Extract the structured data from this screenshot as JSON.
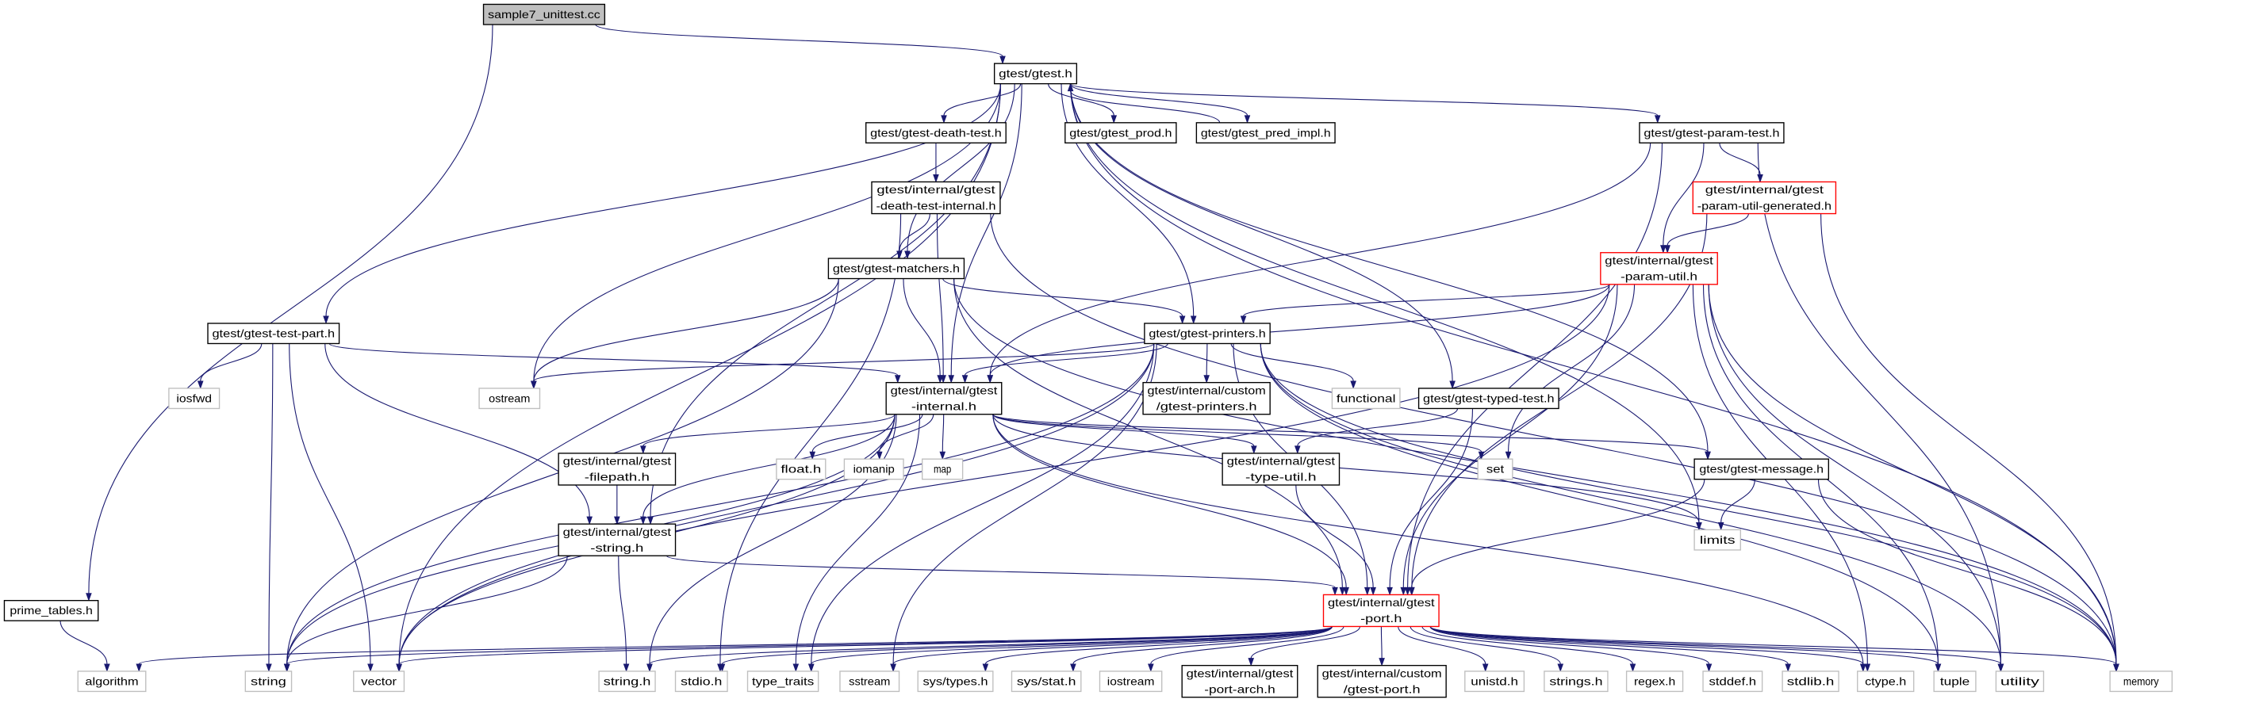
{
  "colors": {
    "edge": "#191970",
    "root_fill": "#bfbfbf",
    "documented_border": "#000000",
    "system_border": "#bfbfbf",
    "incomplete_border": "#ff0000"
  },
  "nodes": [
    {
      "id": "sample7",
      "kind": "root",
      "lines": [
        "sample7_unittest.cc"
      ]
    },
    {
      "id": "gtest",
      "kind": "documented",
      "lines": [
        "gtest/gtest.h"
      ]
    },
    {
      "id": "death",
      "kind": "documented",
      "lines": [
        "gtest/gtest-death-test.h"
      ]
    },
    {
      "id": "prod",
      "kind": "documented",
      "lines": [
        "gtest/gtest_prod.h"
      ]
    },
    {
      "id": "pred",
      "kind": "documented",
      "lines": [
        "gtest/gtest_pred_impl.h"
      ]
    },
    {
      "id": "param",
      "kind": "documented",
      "lines": [
        "gtest/gtest-param-test.h"
      ]
    },
    {
      "id": "dti",
      "kind": "documented",
      "lines": [
        "gtest/internal/gtest",
        "-death-test-internal.h"
      ]
    },
    {
      "id": "pug",
      "kind": "incomplete",
      "lines": [
        "gtest/internal/gtest",
        "-param-util-generated.h"
      ]
    },
    {
      "id": "matchers",
      "kind": "documented",
      "lines": [
        "gtest/gtest-matchers.h"
      ]
    },
    {
      "id": "pu",
      "kind": "incomplete",
      "lines": [
        "gtest/internal/gtest",
        "-param-util.h"
      ]
    },
    {
      "id": "testpart",
      "kind": "documented",
      "lines": [
        "gtest/gtest-test-part.h"
      ]
    },
    {
      "id": "printers",
      "kind": "documented",
      "lines": [
        "gtest/gtest-printers.h"
      ]
    },
    {
      "id": "iosfwd",
      "kind": "system",
      "lines": [
        "iosfwd"
      ]
    },
    {
      "id": "ostream",
      "kind": "system",
      "lines": [
        "ostream"
      ]
    },
    {
      "id": "internal",
      "kind": "documented",
      "lines": [
        "gtest/internal/gtest",
        "-internal.h"
      ]
    },
    {
      "id": "cprinters",
      "kind": "documented",
      "lines": [
        "gtest/internal/custom",
        "/gtest-printers.h"
      ]
    },
    {
      "id": "functional",
      "kind": "system",
      "lines": [
        "functional"
      ]
    },
    {
      "id": "typed",
      "kind": "documented",
      "lines": [
        "gtest/gtest-typed-test.h"
      ]
    },
    {
      "id": "filepath",
      "kind": "documented",
      "lines": [
        "gtest/internal/gtest",
        "-filepath.h"
      ]
    },
    {
      "id": "float",
      "kind": "system",
      "lines": [
        "float.h"
      ]
    },
    {
      "id": "iomanip",
      "kind": "system",
      "lines": [
        "iomanip"
      ]
    },
    {
      "id": "map",
      "kind": "system",
      "lines": [
        "map"
      ]
    },
    {
      "id": "typeutil",
      "kind": "documented",
      "lines": [
        "gtest/internal/gtest",
        "-type-util.h"
      ]
    },
    {
      "id": "set",
      "kind": "system",
      "lines": [
        "set"
      ]
    },
    {
      "id": "message",
      "kind": "documented",
      "lines": [
        "gtest/gtest-message.h"
      ]
    },
    {
      "id": "gstring",
      "kind": "documented",
      "lines": [
        "gtest/internal/gtest",
        "-string.h"
      ]
    },
    {
      "id": "limits",
      "kind": "system",
      "lines": [
        "limits"
      ]
    },
    {
      "id": "prime",
      "kind": "documented",
      "lines": [
        "prime_tables.h"
      ]
    },
    {
      "id": "port",
      "kind": "incomplete",
      "lines": [
        "gtest/internal/gtest",
        "-port.h"
      ]
    },
    {
      "id": "algorithm",
      "kind": "system",
      "lines": [
        "algorithm"
      ]
    },
    {
      "id": "string",
      "kind": "system",
      "lines": [
        "string"
      ]
    },
    {
      "id": "vector",
      "kind": "system",
      "lines": [
        "vector"
      ]
    },
    {
      "id": "stringh",
      "kind": "system",
      "lines": [
        "string.h"
      ]
    },
    {
      "id": "stdio",
      "kind": "system",
      "lines": [
        "stdio.h"
      ]
    },
    {
      "id": "typetraits",
      "kind": "system",
      "lines": [
        "type_traits"
      ]
    },
    {
      "id": "sstream",
      "kind": "system",
      "lines": [
        "sstream"
      ]
    },
    {
      "id": "systypes",
      "kind": "system",
      "lines": [
        "sys/types.h"
      ]
    },
    {
      "id": "sysstat",
      "kind": "system",
      "lines": [
        "sys/stat.h"
      ]
    },
    {
      "id": "iostream",
      "kind": "system",
      "lines": [
        "iostream"
      ]
    },
    {
      "id": "portarch",
      "kind": "documented",
      "lines": [
        "gtest/internal/gtest",
        "-port-arch.h"
      ]
    },
    {
      "id": "cport",
      "kind": "documented",
      "lines": [
        "gtest/internal/custom",
        "/gtest-port.h"
      ]
    },
    {
      "id": "unistd",
      "kind": "system",
      "lines": [
        "unistd.h"
      ]
    },
    {
      "id": "strings",
      "kind": "system",
      "lines": [
        "strings.h"
      ]
    },
    {
      "id": "regex",
      "kind": "system",
      "lines": [
        "regex.h"
      ]
    },
    {
      "id": "stddef",
      "kind": "system",
      "lines": [
        "stddef.h"
      ]
    },
    {
      "id": "stdlib",
      "kind": "system",
      "lines": [
        "stdlib.h"
      ]
    },
    {
      "id": "ctype",
      "kind": "system",
      "lines": [
        "ctype.h"
      ]
    },
    {
      "id": "tuple",
      "kind": "system",
      "lines": [
        "tuple"
      ]
    },
    {
      "id": "utility",
      "kind": "system",
      "lines": [
        "utility"
      ]
    },
    {
      "id": "memory",
      "kind": "system",
      "lines": [
        "memory"
      ]
    }
  ],
  "edges": [
    [
      "sample7",
      "gtest"
    ],
    [
      "sample7",
      "prime"
    ],
    [
      "prime",
      "algorithm"
    ],
    [
      "gtest",
      "death"
    ],
    [
      "gtest",
      "prod"
    ],
    [
      "gtest",
      "pred"
    ],
    [
      "gtest",
      "param"
    ],
    [
      "gtest",
      "matchers"
    ],
    [
      "gtest",
      "printers"
    ],
    [
      "gtest",
      "testpart"
    ],
    [
      "gtest",
      "internal"
    ],
    [
      "gtest",
      "gstring"
    ],
    [
      "gtest",
      "ostream"
    ],
    [
      "gtest",
      "vector"
    ],
    [
      "gtest",
      "limits"
    ],
    [
      "gtest",
      "memory"
    ],
    [
      "gtest",
      "message"
    ],
    [
      "gtest",
      "typed"
    ],
    [
      "pred",
      "gtest"
    ],
    [
      "death",
      "dti"
    ],
    [
      "dti",
      "matchers"
    ],
    [
      "dti",
      "internal"
    ],
    [
      "dti",
      "stdio"
    ],
    [
      "dti",
      "memory"
    ],
    [
      "matchers",
      "printers"
    ],
    [
      "matchers",
      "internal"
    ],
    [
      "matchers",
      "ostream"
    ],
    [
      "matchers",
      "string"
    ],
    [
      "matchers",
      "port"
    ],
    [
      "matchers",
      "memory"
    ],
    [
      "param",
      "pug"
    ],
    [
      "param",
      "pu"
    ],
    [
      "param",
      "internal"
    ],
    [
      "param",
      "port"
    ],
    [
      "param",
      "utility"
    ],
    [
      "pug",
      "pu"
    ],
    [
      "pug",
      "port"
    ],
    [
      "pug",
      "memory"
    ],
    [
      "pu",
      "printers"
    ],
    [
      "pu",
      "internal"
    ],
    [
      "pu",
      "port"
    ],
    [
      "pu",
      "vector"
    ],
    [
      "pu",
      "set"
    ],
    [
      "pu",
      "ctype"
    ],
    [
      "pu",
      "tuple"
    ],
    [
      "pu",
      "utility"
    ],
    [
      "pu",
      "memory"
    ],
    [
      "testpart",
      "iosfwd"
    ],
    [
      "testpart",
      "internal"
    ],
    [
      "testpart",
      "gstring"
    ],
    [
      "testpart",
      "vector"
    ],
    [
      "testpart",
      "string"
    ],
    [
      "printers",
      "ostream"
    ],
    [
      "printers",
      "internal"
    ],
    [
      "printers",
      "cprinters"
    ],
    [
      "printers",
      "functional"
    ],
    [
      "printers",
      "port"
    ],
    [
      "printers",
      "string"
    ],
    [
      "printers",
      "vector"
    ],
    [
      "printers",
      "sstream"
    ],
    [
      "printers",
      "typetraits"
    ],
    [
      "printers",
      "tuple"
    ],
    [
      "printers",
      "utility"
    ],
    [
      "printers",
      "memory"
    ],
    [
      "internal",
      "filepath"
    ],
    [
      "internal",
      "float"
    ],
    [
      "internal",
      "iomanip"
    ],
    [
      "internal",
      "map"
    ],
    [
      "internal",
      "typeutil"
    ],
    [
      "internal",
      "set"
    ],
    [
      "internal",
      "message"
    ],
    [
      "internal",
      "gstring"
    ],
    [
      "internal",
      "port"
    ],
    [
      "internal",
      "string"
    ],
    [
      "internal",
      "vector"
    ],
    [
      "internal",
      "stringh"
    ],
    [
      "internal",
      "typetraits"
    ],
    [
      "internal",
      "limits"
    ],
    [
      "internal",
      "ctype"
    ],
    [
      "filepath",
      "gstring"
    ],
    [
      "gstring",
      "port"
    ],
    [
      "gstring",
      "string"
    ],
    [
      "gstring",
      "stringh"
    ],
    [
      "typed",
      "typeutil"
    ],
    [
      "typed",
      "port"
    ],
    [
      "typeutil",
      "port"
    ],
    [
      "message",
      "limits"
    ],
    [
      "message",
      "port"
    ],
    [
      "message",
      "memory"
    ],
    [
      "port",
      "algorithm"
    ],
    [
      "port",
      "string"
    ],
    [
      "port",
      "vector"
    ],
    [
      "port",
      "stringh"
    ],
    [
      "port",
      "stdio"
    ],
    [
      "port",
      "typetraits"
    ],
    [
      "port",
      "sstream"
    ],
    [
      "port",
      "systypes"
    ],
    [
      "port",
      "sysstat"
    ],
    [
      "port",
      "iostream"
    ],
    [
      "port",
      "portarch"
    ],
    [
      "port",
      "cport"
    ],
    [
      "port",
      "unistd"
    ],
    [
      "port",
      "strings"
    ],
    [
      "port",
      "regex"
    ],
    [
      "port",
      "stddef"
    ],
    [
      "port",
      "stdlib"
    ],
    [
      "port",
      "ctype"
    ],
    [
      "port",
      "tuple"
    ],
    [
      "port",
      "utility"
    ],
    [
      "port",
      "memory"
    ]
  ]
}
